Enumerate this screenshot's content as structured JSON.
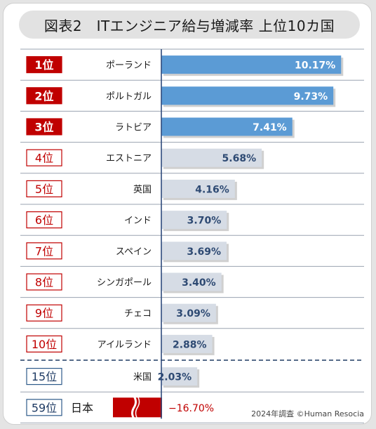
{
  "title": "図表2　ITエンジニア給与増減率 上位10カ国",
  "footnote": "2024年調査 ©Human Resocia",
  "colors": {
    "top3_bar": "#5b9bd5",
    "other_bar": "#d6dce5",
    "top3_badge_fill": "#c00000",
    "badge_outline_red": "#c00000",
    "badge_outline_blue": "#2e5b8a",
    "negative_bar": "#c00000",
    "negative_text": "#c00000"
  },
  "chart_data": {
    "type": "bar",
    "orientation": "horizontal",
    "categories": [
      "ポーランド",
      "ポルトガル",
      "ラトビア",
      "エストニア",
      "英国",
      "インド",
      "スペイン",
      "シンガポール",
      "チェコ",
      "アイルランド",
      "米国",
      "日本"
    ],
    "ranks": [
      "1位",
      "2位",
      "3位",
      "4位",
      "5位",
      "6位",
      "7位",
      "8位",
      "9位",
      "10位",
      "15位",
      "59位"
    ],
    "values": [
      10.17,
      9.73,
      7.41,
      5.68,
      4.16,
      3.7,
      3.69,
      3.4,
      3.09,
      2.88,
      2.03,
      -16.7
    ],
    "labels": [
      "10.17%",
      "9.73%",
      "7.41%",
      "5.68%",
      "4.16%",
      "3.70%",
      "3.69%",
      "3.40%",
      "3.09%",
      "2.88%",
      "2.03%",
      "−16.70%"
    ],
    "highlight_top": 3,
    "separator_after_index": 9,
    "axis_break_on_negative": true,
    "grid": false
  }
}
